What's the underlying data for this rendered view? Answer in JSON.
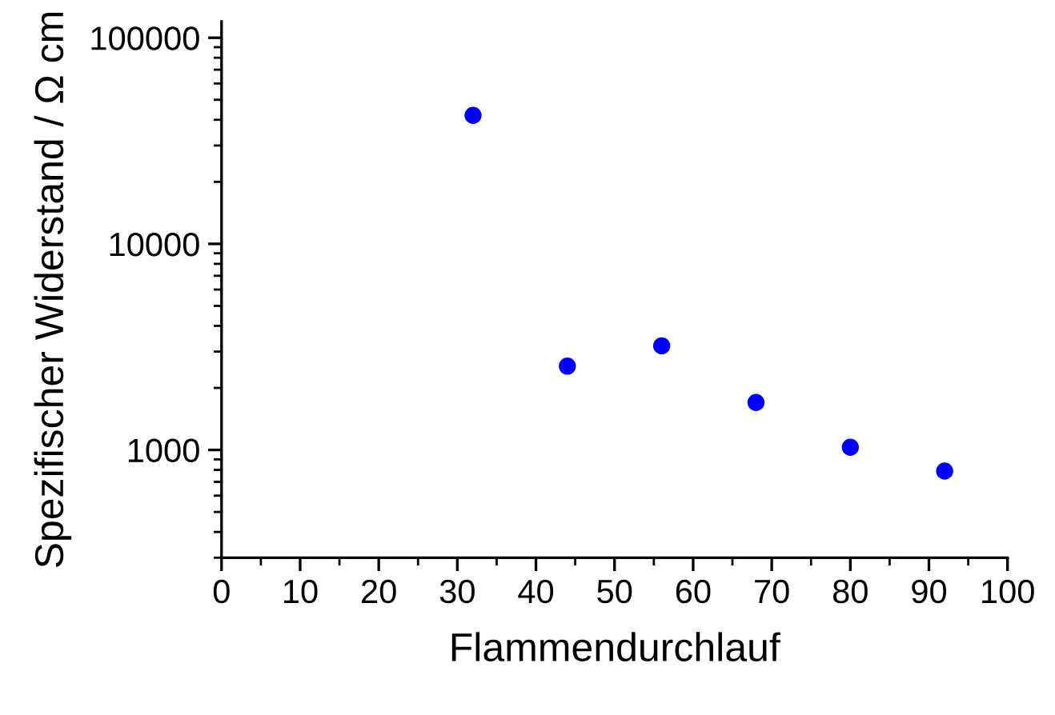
{
  "chart_data": {
    "type": "scatter",
    "xlabel": "Flammendurchlauf",
    "ylabel": "Spezifischer Widerstand / Ω cm",
    "x": [
      32,
      44,
      56,
      68,
      80,
      92
    ],
    "series": [
      {
        "color": "#0000ff",
        "values": [
          42000,
          2550,
          3200,
          1700,
          1030,
          790
        ]
      }
    ],
    "log": "y",
    "marker": "circle",
    "grid": false,
    "legend": false,
    "xlim": [
      0,
      100
    ],
    "xticks": [
      0,
      10,
      20,
      30,
      40,
      50,
      60,
      70,
      80,
      90,
      100
    ],
    "ylim": [
      300,
      120000
    ],
    "yticks": [
      1000,
      10000,
      100000
    ]
  }
}
